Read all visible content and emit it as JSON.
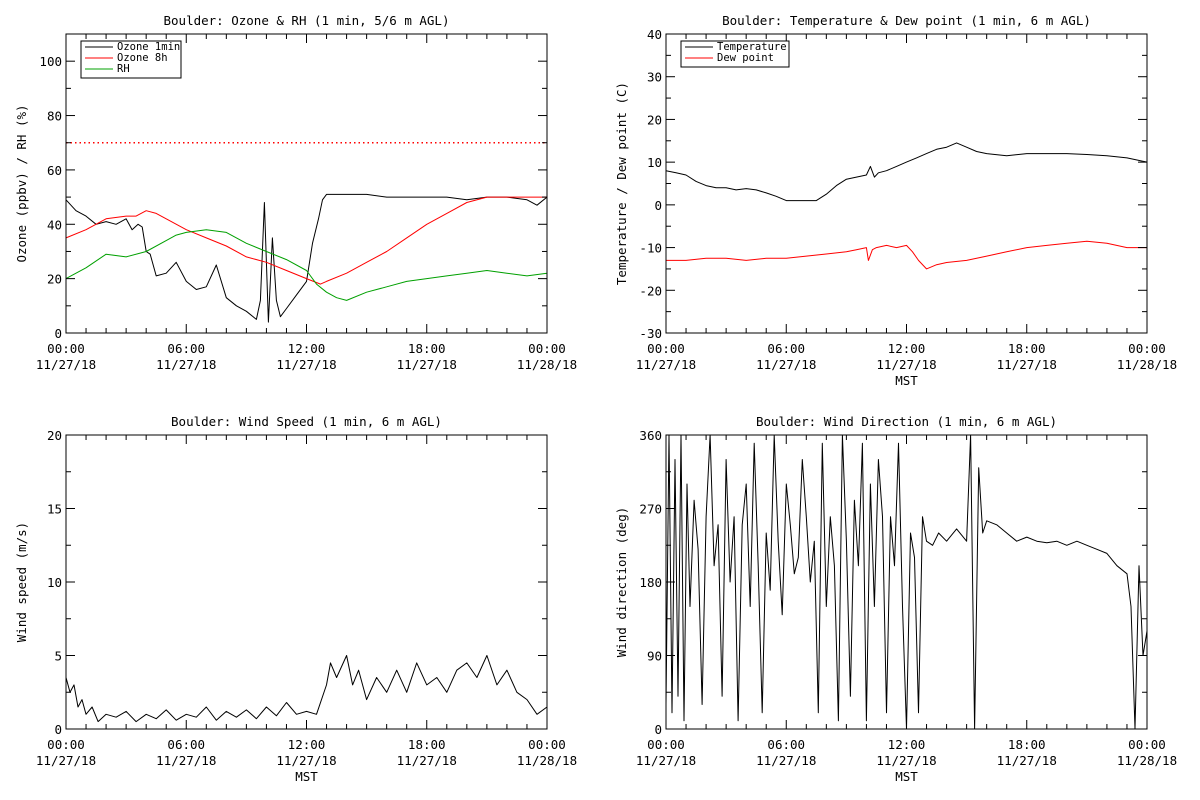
{
  "chart_data": [
    {
      "id": "ozone_rh",
      "type": "line",
      "title": "Boulder: Ozone & RH (1 min, 5/6 m AGL)",
      "ylabel": "Ozone (ppbv) / RH (%)",
      "xlabel": "",
      "ylim": [
        0,
        110
      ],
      "yticks": [
        0,
        20,
        40,
        60,
        80,
        100
      ],
      "xlim": [
        0,
        24
      ],
      "xticks": [
        0,
        6,
        12,
        18,
        24
      ],
      "xtick_labels": [
        [
          "00:00",
          "11/27/18"
        ],
        [
          "06:00",
          "11/27/18"
        ],
        [
          "12:00",
          "11/27/18"
        ],
        [
          "18:00",
          "11/27/18"
        ],
        [
          "00:00",
          "11/28/18"
        ]
      ],
      "legend_position": "top-left",
      "grid": false,
      "reference_lines": [
        {
          "y": 70,
          "color": "#ff0000",
          "style": "dotted"
        }
      ],
      "series": [
        {
          "name": "Ozone 1min",
          "color": "#000000",
          "x": [
            0,
            0.5,
            1,
            1.5,
            2,
            2.5,
            3,
            3.3,
            3.6,
            3.8,
            4,
            4.2,
            4.5,
            5,
            5.5,
            6,
            6.5,
            7,
            7.5,
            8,
            8.5,
            9,
            9.5,
            9.7,
            9.9,
            10.1,
            10.3,
            10.5,
            10.7,
            11,
            11.5,
            12,
            12.3,
            12.6,
            12.8,
            13,
            13.5,
            14,
            15,
            16,
            17,
            18,
            19,
            20,
            21,
            22,
            23,
            23.5,
            24
          ],
          "y": [
            49,
            45,
            43,
            40,
            41,
            40,
            42,
            38,
            40,
            39,
            30,
            29,
            21,
            22,
            26,
            19,
            16,
            17,
            25,
            13,
            10,
            8,
            5,
            12,
            48,
            4,
            35,
            12,
            6,
            9,
            14,
            19,
            33,
            42,
            49,
            51,
            51,
            51,
            51,
            50,
            50,
            50,
            50,
            49,
            50,
            50,
            49,
            47,
            50
          ]
        },
        {
          "name": "Ozone 8h",
          "color": "#ff0000",
          "x": [
            0,
            1,
            2,
            3,
            3.5,
            4,
            4.5,
            5,
            6,
            7,
            8,
            9,
            10,
            11,
            12,
            12.7,
            13,
            14,
            15,
            16,
            17,
            18,
            19,
            20,
            21,
            22,
            23,
            24
          ],
          "y": [
            35,
            38,
            42,
            43,
            43,
            45,
            44,
            42,
            38,
            35,
            32,
            28,
            26,
            23,
            20,
            18,
            19,
            22,
            26,
            30,
            35,
            40,
            44,
            48,
            50,
            50,
            50,
            50
          ]
        },
        {
          "name": "RH",
          "color": "#00a000",
          "x": [
            0,
            1,
            2,
            3,
            4,
            5,
            5.5,
            6,
            7,
            8,
            9,
            10,
            11,
            12,
            12.5,
            13,
            13.5,
            14,
            15,
            16,
            17,
            18,
            19,
            20,
            21,
            22,
            23,
            24
          ],
          "y": [
            20,
            24,
            29,
            28,
            30,
            34,
            36,
            37,
            38,
            37,
            33,
            30,
            27,
            23,
            18,
            15,
            13,
            12,
            15,
            17,
            19,
            20,
            21,
            22,
            23,
            22,
            21,
            22
          ]
        }
      ]
    },
    {
      "id": "temp_dew",
      "type": "line",
      "title": "Boulder: Temperature & Dew point (1 min, 6 m AGL)",
      "ylabel": "Temperature / Dew point (C)",
      "xlabel": "MST",
      "ylim": [
        -30,
        40
      ],
      "yticks": [
        -30,
        -20,
        -10,
        0,
        10,
        20,
        30,
        40
      ],
      "xlim": [
        0,
        24
      ],
      "xticks": [
        0,
        6,
        12,
        18,
        24
      ],
      "xtick_labels": [
        [
          "00:00",
          "11/27/18"
        ],
        [
          "06:00",
          "11/27/18"
        ],
        [
          "12:00",
          "11/27/18"
        ],
        [
          "18:00",
          "11/27/18"
        ],
        [
          "00:00",
          "11/28/18"
        ]
      ],
      "legend_position": "top-left",
      "grid": false,
      "series": [
        {
          "name": "Temperature",
          "color": "#000000",
          "x": [
            0,
            0.5,
            1,
            1.5,
            2,
            2.5,
            3,
            3.5,
            4,
            4.5,
            5,
            5.5,
            6,
            6.5,
            7,
            7.5,
            8,
            8.5,
            9,
            9.5,
            10,
            10.2,
            10.4,
            10.6,
            11,
            11.5,
            12,
            12.5,
            13,
            13.5,
            14,
            14.5,
            15,
            15.5,
            16,
            17,
            18,
            19,
            20,
            21,
            22,
            23,
            23.5,
            24
          ],
          "y": [
            8,
            7.5,
            7,
            5.5,
            4.5,
            4,
            4,
            3.5,
            3.8,
            3.5,
            2.8,
            2,
            1,
            1,
            1,
            1,
            2.5,
            4.5,
            6,
            6.5,
            7,
            9,
            6.5,
            7.5,
            8,
            9,
            10,
            11,
            12,
            13,
            13.5,
            14.5,
            13.5,
            12.5,
            12,
            11.5,
            12,
            12,
            12,
            11.8,
            11.5,
            11,
            10.5,
            10
          ]
        },
        {
          "name": "Dew point",
          "color": "#ff0000",
          "x": [
            0,
            1,
            2,
            3,
            4,
            5,
            6,
            7,
            8,
            9,
            9.5,
            10,
            10.1,
            10.3,
            10.5,
            11,
            11.5,
            12,
            12.3,
            12.6,
            13,
            13.5,
            14,
            15,
            16,
            17,
            18,
            19,
            20,
            21,
            22,
            23,
            24
          ],
          "y": [
            -13,
            -13,
            -12.5,
            -12.5,
            -13,
            -12.5,
            -12.5,
            -12,
            -11.5,
            -11,
            -10.5,
            -10,
            -13,
            -10.5,
            -10,
            -9.5,
            -10,
            -9.5,
            -11,
            -13,
            -15,
            -14,
            -13.5,
            -13,
            -12,
            -11,
            -10,
            -9.5,
            -9,
            -8.5,
            -9,
            -10,
            -10
          ]
        }
      ]
    },
    {
      "id": "wind_speed",
      "type": "line",
      "title": "Boulder: Wind Speed (1 min, 6 m AGL)",
      "ylabel": "Wind speed (m/s)",
      "xlabel": "MST",
      "ylim": [
        0,
        20
      ],
      "yticks": [
        0,
        5,
        10,
        15,
        20
      ],
      "xlim": [
        0,
        24
      ],
      "xticks": [
        0,
        6,
        12,
        18,
        24
      ],
      "xtick_labels": [
        [
          "00:00",
          "11/27/18"
        ],
        [
          "06:00",
          "11/27/18"
        ],
        [
          "12:00",
          "11/27/18"
        ],
        [
          "18:00",
          "11/27/18"
        ],
        [
          "00:00",
          "11/28/18"
        ]
      ],
      "grid": false,
      "series": [
        {
          "name": "",
          "color": "#000000",
          "x": [
            0,
            0.2,
            0.4,
            0.6,
            0.8,
            1,
            1.3,
            1.6,
            2,
            2.5,
            3,
            3.5,
            4,
            4.5,
            5,
            5.5,
            6,
            6.5,
            7,
            7.5,
            8,
            8.5,
            9,
            9.5,
            10,
            10.5,
            11,
            11.5,
            12,
            12.5,
            13,
            13.2,
            13.5,
            14,
            14.3,
            14.6,
            15,
            15.5,
            16,
            16.5,
            17,
            17.5,
            18,
            18.5,
            19,
            19.5,
            20,
            20.5,
            21,
            21.5,
            22,
            22.5,
            23,
            23.5,
            24
          ],
          "y": [
            3.5,
            2.5,
            3,
            1.5,
            2,
            1,
            1.5,
            0.5,
            1,
            0.8,
            1.2,
            0.5,
            1,
            0.7,
            1.3,
            0.6,
            1,
            0.8,
            1.5,
            0.6,
            1.2,
            0.8,
            1.3,
            0.7,
            1.5,
            0.9,
            1.8,
            1,
            1.2,
            1,
            3,
            4.5,
            3.5,
            5,
            3,
            4,
            2,
            3.5,
            2.5,
            4,
            2.5,
            4.5,
            3,
            3.5,
            2.5,
            4,
            4.5,
            3.5,
            5,
            3,
            4,
            2.5,
            2,
            1,
            1.5
          ]
        }
      ]
    },
    {
      "id": "wind_direction",
      "type": "line",
      "title": "Boulder: Wind Direction (1 min, 6 m AGL)",
      "ylabel": "Wind direction (deg)",
      "xlabel": "MST",
      "ylim": [
        0,
        360
      ],
      "yticks": [
        0,
        90,
        180,
        270,
        360
      ],
      "xlim": [
        0,
        24
      ],
      "xticks": [
        0,
        6,
        12,
        18,
        24
      ],
      "xtick_labels": [
        [
          "00:00",
          "11/27/18"
        ],
        [
          "06:00",
          "11/27/18"
        ],
        [
          "12:00",
          "11/27/18"
        ],
        [
          "18:00",
          "11/27/18"
        ],
        [
          "00:00",
          "11/28/18"
        ]
      ],
      "grid": false,
      "series": [
        {
          "name": "",
          "color": "#000000",
          "x": [
            0,
            0.15,
            0.3,
            0.45,
            0.6,
            0.75,
            0.9,
            1.05,
            1.2,
            1.4,
            1.6,
            1.8,
            2,
            2.2,
            2.4,
            2.6,
            2.8,
            3,
            3.2,
            3.4,
            3.6,
            3.8,
            4,
            4.2,
            4.4,
            4.6,
            4.8,
            5,
            5.2,
            5.4,
            5.6,
            5.8,
            6,
            6.2,
            6.4,
            6.6,
            6.8,
            7,
            7.2,
            7.4,
            7.6,
            7.8,
            8,
            8.2,
            8.4,
            8.6,
            8.8,
            9,
            9.2,
            9.4,
            9.6,
            9.8,
            10,
            10.2,
            10.4,
            10.6,
            10.8,
            11,
            11.2,
            11.4,
            11.6,
            11.8,
            12,
            12.2,
            12.4,
            12.6,
            12.8,
            13,
            13.3,
            13.6,
            14,
            14.5,
            15,
            15.2,
            15.4,
            15.6,
            15.8,
            16,
            16.5,
            17,
            17.5,
            18,
            18.5,
            19,
            19.5,
            20,
            20.5,
            21,
            21.5,
            22,
            22.5,
            23,
            23.2,
            23.4,
            23.6,
            23.8,
            24
          ],
          "y": [
            30,
            360,
            20,
            330,
            40,
            360,
            10,
            300,
            150,
            280,
            220,
            30,
            260,
            360,
            200,
            250,
            40,
            330,
            180,
            260,
            10,
            250,
            300,
            150,
            350,
            200,
            20,
            240,
            170,
            360,
            230,
            140,
            300,
            250,
            190,
            210,
            330,
            260,
            180,
            230,
            20,
            350,
            150,
            260,
            200,
            10,
            360,
            230,
            40,
            280,
            200,
            350,
            10,
            300,
            150,
            330,
            260,
            20,
            260,
            200,
            350,
            150,
            0,
            240,
            210,
            20,
            260,
            230,
            225,
            240,
            230,
            245,
            230,
            360,
            0,
            320,
            240,
            255,
            250,
            240,
            230,
            235,
            230,
            228,
            230,
            225,
            230,
            225,
            220,
            215,
            200,
            190,
            150,
            0,
            200,
            90,
            120
          ]
        }
      ]
    }
  ]
}
